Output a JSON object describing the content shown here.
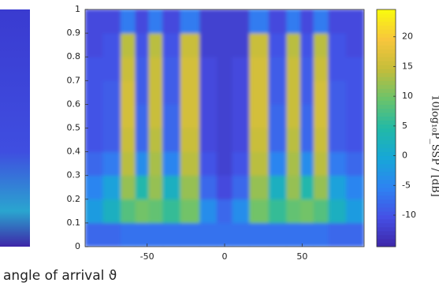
{
  "chart_data": {
    "type": "heatmap",
    "x": [
      -85,
      -72,
      -62,
      -53,
      -45,
      -35,
      -22,
      -10,
      0,
      10,
      22,
      35,
      45,
      53,
      62,
      72,
      85
    ],
    "y": [
      0.05,
      0.15,
      0.25,
      0.35,
      0.45,
      0.55,
      0.65,
      0.75,
      0.85,
      0.95
    ],
    "values": [
      [
        -8,
        -8,
        -7,
        -7,
        -7,
        -7,
        -7,
        -7,
        -7,
        -7,
        -7,
        -7,
        -7,
        -7,
        -7,
        -8,
        -8
      ],
      [
        -2,
        2,
        8,
        10,
        9,
        6,
        10,
        -4,
        -8,
        -4,
        10,
        6,
        9,
        10,
        8,
        2,
        -2
      ],
      [
        -5,
        -1,
        12,
        4,
        12,
        2,
        12,
        -8,
        -11,
        -8,
        12,
        2,
        12,
        4,
        12,
        -1,
        -5
      ],
      [
        -8,
        -6,
        14,
        -4,
        13,
        -5,
        14,
        -10,
        -12,
        -10,
        14,
        -5,
        13,
        -4,
        14,
        -6,
        -8
      ],
      [
        -10,
        -9,
        15,
        -8,
        14,
        -8,
        15,
        -11,
        -12,
        -11,
        15,
        -8,
        14,
        -8,
        15,
        -9,
        -10
      ],
      [
        -10,
        -9,
        16,
        -8,
        15,
        -8,
        16,
        -11,
        -12,
        -11,
        16,
        -8,
        15,
        -8,
        16,
        -9,
        -10
      ],
      [
        -10,
        -9,
        16,
        -9,
        15,
        -9,
        16,
        -11,
        -12,
        -11,
        16,
        -9,
        15,
        -9,
        16,
        -9,
        -10
      ],
      [
        -10,
        -10,
        15,
        -9,
        15,
        -9,
        16,
        -11,
        -12,
        -11,
        16,
        -9,
        15,
        -9,
        15,
        -10,
        -10
      ],
      [
        -11,
        -10,
        14,
        -10,
        14,
        -10,
        15,
        -12,
        -12,
        -12,
        15,
        -10,
        14,
        -10,
        14,
        -10,
        -11
      ],
      [
        -11,
        -11,
        -6,
        -11,
        -6,
        -11,
        -6,
        -12,
        -12,
        -12,
        -6,
        -11,
        -6,
        -11,
        -6,
        -11,
        -11
      ]
    ],
    "xlim": [
      -90,
      90
    ],
    "xticks": [
      -50,
      0,
      50
    ],
    "ylim": [
      0,
      1
    ],
    "yticks": [
      0,
      0.1,
      0.2,
      0.3,
      0.4,
      0.5,
      0.6,
      0.7,
      0.8,
      0.9,
      1
    ],
    "clim": [
      -15.3,
      24.6
    ],
    "cticks": [
      -10,
      -5,
      0,
      5,
      10,
      15,
      20
    ],
    "colormap": [
      "#3e26a8",
      "#4550e5",
      "#2d83f2",
      "#17a7d7",
      "#22b9a6",
      "#6cc36a",
      "#c5bd3a",
      "#f8c63c",
      "#f9fb0e"
    ],
    "colorbar_label": "10log₁₀P_SSP / [dB]",
    "xlabel": "angle of arrival ϑ"
  }
}
